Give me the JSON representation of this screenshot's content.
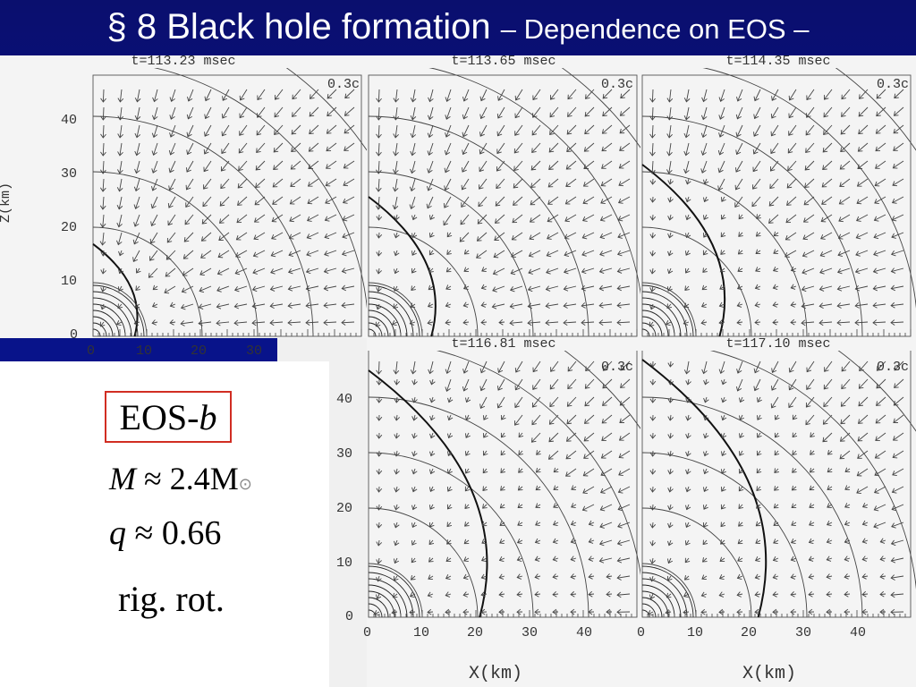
{
  "slide": {
    "title_main": "§ 8  Black hole formation ",
    "title_sub": "– Dependence on EOS –"
  },
  "panels": [
    {
      "time": "t=113.23 msec",
      "scale": "0.3c"
    },
    {
      "time": "t=113.65 msec",
      "scale": "0.3c"
    },
    {
      "time": "t=114.35 msec",
      "scale": "0.3c"
    },
    {
      "time": "t=116.81 msec",
      "scale": "0.3c"
    },
    {
      "time": "t=117.10 msec",
      "scale": "0.3c"
    }
  ],
  "axes": {
    "ylabel": "Z(km)",
    "xlabel": "X(km)",
    "top_yticks": [
      "40",
      "30",
      "20",
      "10",
      "0"
    ],
    "top_xticks": [
      "0",
      "10",
      "20",
      "30"
    ],
    "bottom_yticks": [
      "40",
      "30",
      "20",
      "10",
      "0"
    ],
    "bottom_xticks": [
      "0",
      "10",
      "20",
      "30",
      "40"
    ],
    "bottom_xticks2": [
      "0",
      "10",
      "20",
      "30",
      "40"
    ]
  },
  "model": {
    "eos_label": "EOS-",
    "eos_var": "b",
    "mass_lhs": "M",
    "mass_rhs": "≈ 2.4M",
    "mass_sub": "⊙",
    "q_lhs": "q",
    "q_rhs": "≈ 0.66",
    "rotation": "rig. rot."
  }
}
